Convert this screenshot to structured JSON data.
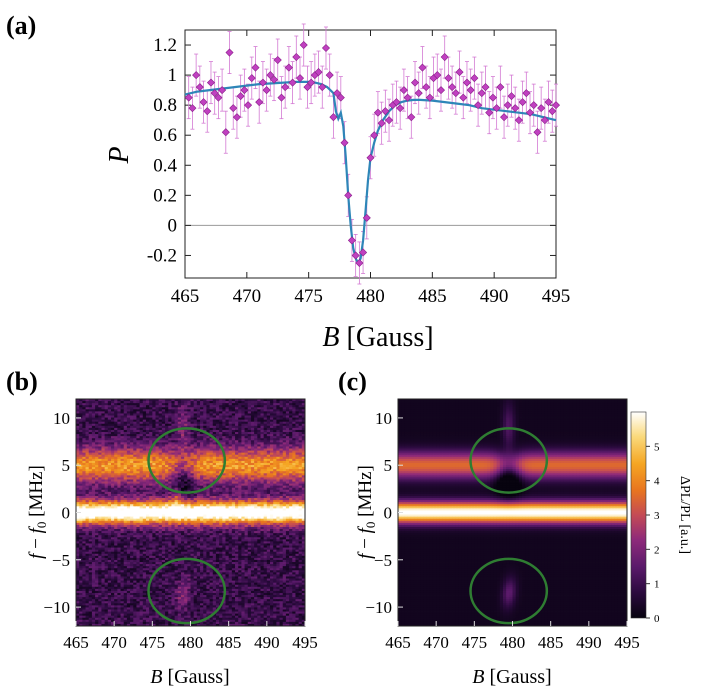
{
  "panels": {
    "a": {
      "label": "(a)",
      "chart_data": {
        "type": "scatter",
        "xlabel_var": "B",
        "xlabel_unit": "[Gauss]",
        "ylabel": "P",
        "xlim": [
          465,
          495
        ],
        "ylim": [
          -0.35,
          1.3
        ],
        "xticks": [
          465,
          470,
          475,
          480,
          485,
          490,
          495
        ],
        "yticks": [
          -0.2,
          0,
          0.2,
          0.4,
          0.6,
          0.8,
          1,
          1.2
        ],
        "ytick_labels": [
          "-0.2",
          "0",
          "0.2",
          "0.4",
          "0.6",
          "0.8",
          "1",
          "1.2"
        ],
        "zero_line": true,
        "grid": false,
        "series": [
          {
            "kind": "points_with_error_bars",
            "color": "#c040c0",
            "x": [
              465.3,
              465.6,
              465.9,
              466.2,
              466.5,
              466.8,
              467.1,
              467.4,
              467.7,
              468.0,
              468.3,
              468.6,
              468.9,
              469.2,
              469.5,
              469.8,
              470.1,
              470.4,
              470.7,
              471.0,
              471.3,
              471.6,
              471.9,
              472.2,
              472.5,
              472.8,
              473.1,
              473.4,
              473.7,
              474.0,
              474.3,
              474.6,
              474.9,
              475.2,
              475.5,
              475.8,
              476.1,
              476.4,
              476.7,
              477.0,
              477.3,
              477.6,
              477.9,
              478.2,
              478.5,
              478.8,
              479.1,
              479.4,
              479.7,
              480.0,
              480.3,
              480.6,
              480.9,
              481.2,
              481.5,
              481.8,
              482.1,
              482.4,
              482.7,
              483.0,
              483.3,
              483.6,
              483.9,
              484.2,
              484.5,
              484.8,
              485.1,
              485.4,
              485.7,
              486.0,
              486.3,
              486.6,
              486.9,
              487.2,
              487.5,
              487.8,
              488.1,
              488.4,
              488.7,
              489.0,
              489.3,
              489.6,
              489.9,
              490.2,
              490.5,
              490.8,
              491.1,
              491.4,
              491.7,
              492.0,
              492.3,
              492.6,
              492.9,
              493.2,
              493.5,
              493.8,
              494.1,
              494.4,
              494.7,
              495.0
            ],
            "y": [
              0.85,
              0.78,
              1.0,
              0.92,
              0.82,
              0.76,
              0.95,
              0.88,
              0.85,
              0.9,
              0.62,
              1.15,
              0.78,
              0.72,
              0.86,
              0.9,
              0.8,
              0.98,
              1.05,
              0.82,
              0.95,
              0.9,
              1.0,
              0.97,
              1.1,
              0.85,
              0.92,
              1.05,
              0.95,
              1.12,
              0.98,
              1.2,
              0.92,
              0.95,
              1.0,
              1.02,
              0.92,
              1.18,
              1.0,
              0.72,
              0.88,
              0.85,
              0.55,
              0.2,
              -0.1,
              -0.2,
              -0.25,
              -0.18,
              0.05,
              0.45,
              0.6,
              0.75,
              0.68,
              0.76,
              0.7,
              0.8,
              0.82,
              0.78,
              0.9,
              0.85,
              0.72,
              0.95,
              0.88,
              1.05,
              0.92,
              0.85,
              0.98,
              1.0,
              0.9,
              1.12,
              0.98,
              0.92,
              0.88,
              1.02,
              0.85,
              0.95,
              0.9,
              0.98,
              0.8,
              0.88,
              0.92,
              0.75,
              0.85,
              0.78,
              0.92,
              0.72,
              0.8,
              0.86,
              0.78,
              0.7,
              0.82,
              0.88,
              0.75,
              0.8,
              0.62,
              0.78,
              0.7,
              0.82,
              0.76,
              0.8
            ],
            "yerr": 0.14
          },
          {
            "kind": "fit_curve",
            "color": "#2e86b8",
            "x": [
              465,
              466,
              467,
              468,
              469,
              470,
              471,
              472,
              473,
              474,
              475,
              475.5,
              476,
              476.5,
              477,
              477.2,
              477.4,
              477.6,
              477.8,
              478,
              478.2,
              478.4,
              478.6,
              478.8,
              479,
              479.2,
              479.4,
              479.6,
              479.8,
              480,
              480.3,
              480.6,
              481,
              481.5,
              482,
              482.5,
              483,
              483.5,
              484,
              485,
              486,
              487,
              488,
              489,
              490,
              491,
              492,
              493,
              494,
              495
            ],
            "y": [
              0.87,
              0.89,
              0.9,
              0.91,
              0.92,
              0.93,
              0.94,
              0.945,
              0.95,
              0.955,
              0.955,
              0.95,
              0.94,
              0.92,
              0.88,
              0.76,
              0.71,
              0.75,
              0.66,
              0.45,
              0.2,
              0.0,
              -0.15,
              -0.22,
              -0.25,
              -0.22,
              -0.1,
              0.1,
              0.3,
              0.45,
              0.55,
              0.63,
              0.7,
              0.76,
              0.8,
              0.82,
              0.83,
              0.835,
              0.835,
              0.83,
              0.82,
              0.81,
              0.8,
              0.78,
              0.77,
              0.76,
              0.75,
              0.74,
              0.72,
              0.7
            ]
          }
        ]
      }
    },
    "b": {
      "label": "(b)",
      "chart_data": {
        "type": "heatmap",
        "description_of_content": "measured",
        "xlabel_var": "B",
        "xlabel_unit": "[Gauss]",
        "ylabel_parts": [
          "f",
          " − ",
          "f",
          "0",
          " [MHz]"
        ],
        "xlim": [
          465,
          495
        ],
        "ylim": [
          -12,
          12
        ],
        "xticks": [
          465,
          470,
          475,
          480,
          485,
          490,
          495
        ],
        "yticks": [
          -10,
          -5,
          0,
          5,
          10
        ],
        "ytick_labels": [
          "−10",
          "−5",
          "0",
          "5",
          "10"
        ],
        "bands": [
          {
            "center": 0,
            "width": 1.2,
            "level": 1.0
          },
          {
            "center": 5,
            "width": 1.8,
            "level": 0.55
          }
        ],
        "feature_center_B": 479,
        "ellipse_color": "#2f7d32",
        "ellipses": [
          {
            "cx": 479.5,
            "cy": 5.5,
            "rx": 5,
            "ry": 3.4
          },
          {
            "cx": 479.5,
            "cy": -8.3,
            "rx": 5,
            "ry": 3.4
          }
        ]
      }
    },
    "c": {
      "label": "(c)",
      "chart_data": {
        "type": "heatmap",
        "description_of_content": "simulated",
        "xlabel_var": "B",
        "xlabel_unit": "[Gauss]",
        "ylabel_parts": [
          "f",
          " − ",
          "f",
          "0",
          " [MHz]"
        ],
        "xlim": [
          465,
          495
        ],
        "ylim": [
          -12,
          12
        ],
        "xticks": [
          465,
          470,
          475,
          480,
          485,
          490,
          495
        ],
        "yticks": [
          -10,
          -5,
          0,
          5,
          10
        ],
        "ytick_labels": [
          "−10",
          "−5",
          "0",
          "5",
          "10"
        ],
        "bands": [
          {
            "center": 0,
            "width": 1.1,
            "level": 1.0
          },
          {
            "center": 5,
            "width": 1.4,
            "level": 0.55
          }
        ],
        "feature_center_B": 479.5,
        "ellipse_color": "#2f7d32",
        "ellipses": [
          {
            "cx": 479.5,
            "cy": 5.5,
            "rx": 5,
            "ry": 3.4
          },
          {
            "cx": 479.5,
            "cy": -8.3,
            "rx": 5,
            "ry": 3.4
          }
        ],
        "colorbar": {
          "label": "ΔPL/PL [a.u.]",
          "range": [
            0,
            6
          ],
          "ticks": [
            0,
            1,
            2,
            3,
            4,
            5
          ],
          "tick_labels": [
            "0",
            "1",
            "2",
            "3",
            "4",
            "5"
          ]
        }
      }
    }
  },
  "colormap": [
    "#07030f",
    "#2a0a3d",
    "#5b1a6b",
    "#8e2a7a",
    "#c44b55",
    "#e8751f",
    "#f5a623",
    "#fad97b",
    "#ffffff"
  ]
}
